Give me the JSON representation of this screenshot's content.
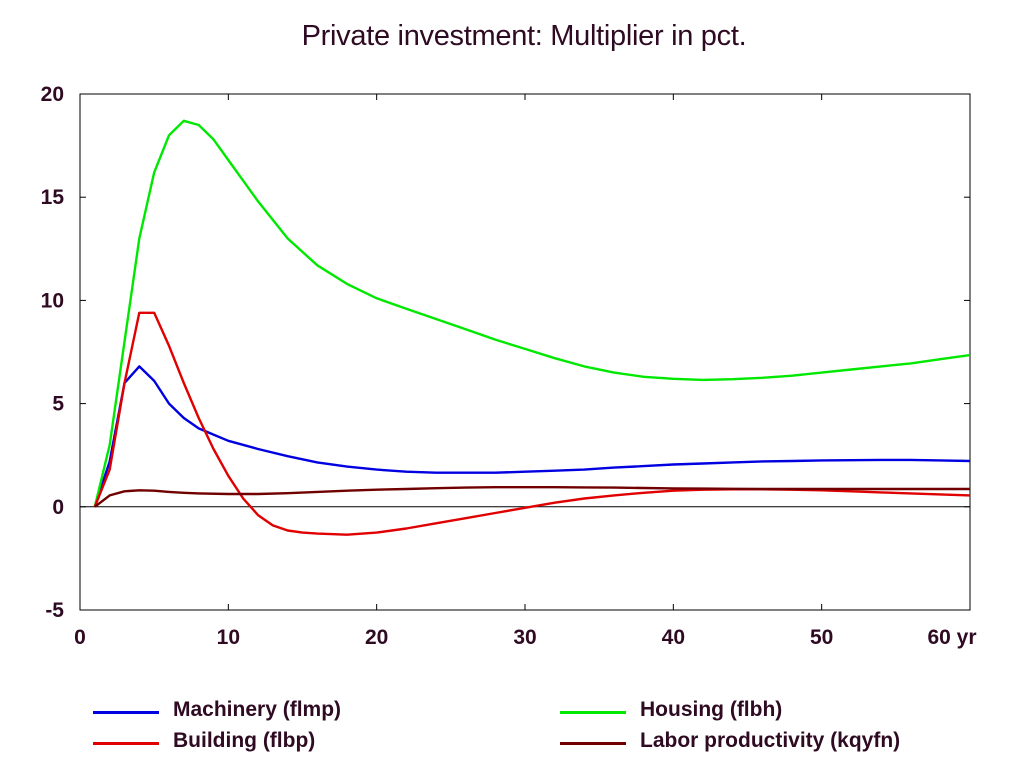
{
  "chart_data": {
    "type": "line",
    "title": "Private investment: Multiplier in pct.",
    "xlabel": "",
    "ylabel": "",
    "xlim": [
      0,
      60
    ],
    "ylim": [
      -5,
      20
    ],
    "x_ticks": [
      0,
      10,
      20,
      30,
      40,
      50,
      60
    ],
    "x_tick_labels": [
      "0",
      "10",
      "20",
      "30",
      "40",
      "50",
      "60 yr"
    ],
    "y_ticks": [
      -5,
      0,
      5,
      10,
      15,
      20
    ],
    "y_tick_labels": [
      "-5",
      "0",
      "5",
      "10",
      "15",
      "20"
    ],
    "grid": false,
    "legend_position": "bottom",
    "series": [
      {
        "name": "Machinery (flmp)",
        "color": "#0000e0",
        "x": [
          1,
          2,
          3,
          4,
          5,
          6,
          7,
          8,
          9,
          10,
          12,
          14,
          16,
          18,
          20,
          22,
          24,
          26,
          28,
          30,
          32,
          34,
          36,
          38,
          40,
          42,
          44,
          46,
          48,
          50,
          52,
          54,
          56,
          58,
          60
        ],
        "y": [
          0.0,
          2.2,
          6.0,
          6.8,
          6.1,
          5.0,
          4.3,
          3.8,
          3.5,
          3.2,
          2.8,
          2.45,
          2.15,
          1.95,
          1.8,
          1.7,
          1.65,
          1.65,
          1.65,
          1.7,
          1.75,
          1.8,
          1.9,
          1.97,
          2.05,
          2.1,
          2.15,
          2.2,
          2.22,
          2.25,
          2.26,
          2.27,
          2.27,
          2.25,
          2.22
        ]
      },
      {
        "name": "Housing (flbh)",
        "color": "#00e800",
        "x": [
          1,
          2,
          3,
          4,
          5,
          6,
          7,
          8,
          9,
          10,
          12,
          14,
          16,
          18,
          20,
          22,
          24,
          26,
          28,
          30,
          32,
          34,
          36,
          38,
          40,
          42,
          44,
          46,
          48,
          50,
          52,
          54,
          56,
          58,
          60
        ],
        "y": [
          0.0,
          3.0,
          8.0,
          13.0,
          16.2,
          18.0,
          18.7,
          18.5,
          17.8,
          16.8,
          14.8,
          13.0,
          11.7,
          10.8,
          10.1,
          9.6,
          9.1,
          8.6,
          8.1,
          7.65,
          7.2,
          6.8,
          6.5,
          6.3,
          6.2,
          6.15,
          6.18,
          6.25,
          6.35,
          6.5,
          6.65,
          6.8,
          6.95,
          7.15,
          7.35
        ]
      },
      {
        "name": "Building (flbp)",
        "color": "#e00000",
        "x": [
          1,
          2,
          3,
          4,
          5,
          6,
          7,
          8,
          9,
          10,
          11,
          12,
          13,
          14,
          15,
          16,
          18,
          20,
          22,
          24,
          26,
          28,
          30,
          32,
          34,
          36,
          38,
          40,
          42,
          44,
          46,
          48,
          50,
          52,
          54,
          56,
          58,
          60
        ],
        "y": [
          0.0,
          1.8,
          6.0,
          9.4,
          9.4,
          7.8,
          6.0,
          4.3,
          2.8,
          1.5,
          0.4,
          -0.4,
          -0.9,
          -1.15,
          -1.25,
          -1.3,
          -1.35,
          -1.25,
          -1.05,
          -0.8,
          -0.55,
          -0.3,
          -0.05,
          0.2,
          0.4,
          0.55,
          0.68,
          0.78,
          0.83,
          0.85,
          0.85,
          0.83,
          0.8,
          0.75,
          0.7,
          0.65,
          0.6,
          0.55
        ]
      },
      {
        "name": "Labor productivity (kqyfn)",
        "color": "#700000",
        "x": [
          1,
          2,
          3,
          4,
          5,
          6,
          7,
          8,
          10,
          12,
          14,
          16,
          18,
          20,
          22,
          24,
          26,
          28,
          30,
          32,
          34,
          36,
          38,
          40,
          42,
          44,
          46,
          48,
          50,
          52,
          54,
          56,
          58,
          60
        ],
        "y": [
          0.0,
          0.55,
          0.75,
          0.8,
          0.78,
          0.72,
          0.68,
          0.65,
          0.62,
          0.62,
          0.66,
          0.72,
          0.78,
          0.83,
          0.86,
          0.9,
          0.93,
          0.95,
          0.95,
          0.95,
          0.94,
          0.93,
          0.91,
          0.89,
          0.88,
          0.87,
          0.86,
          0.86,
          0.86,
          0.86,
          0.86,
          0.86,
          0.86,
          0.86
        ]
      }
    ]
  }
}
